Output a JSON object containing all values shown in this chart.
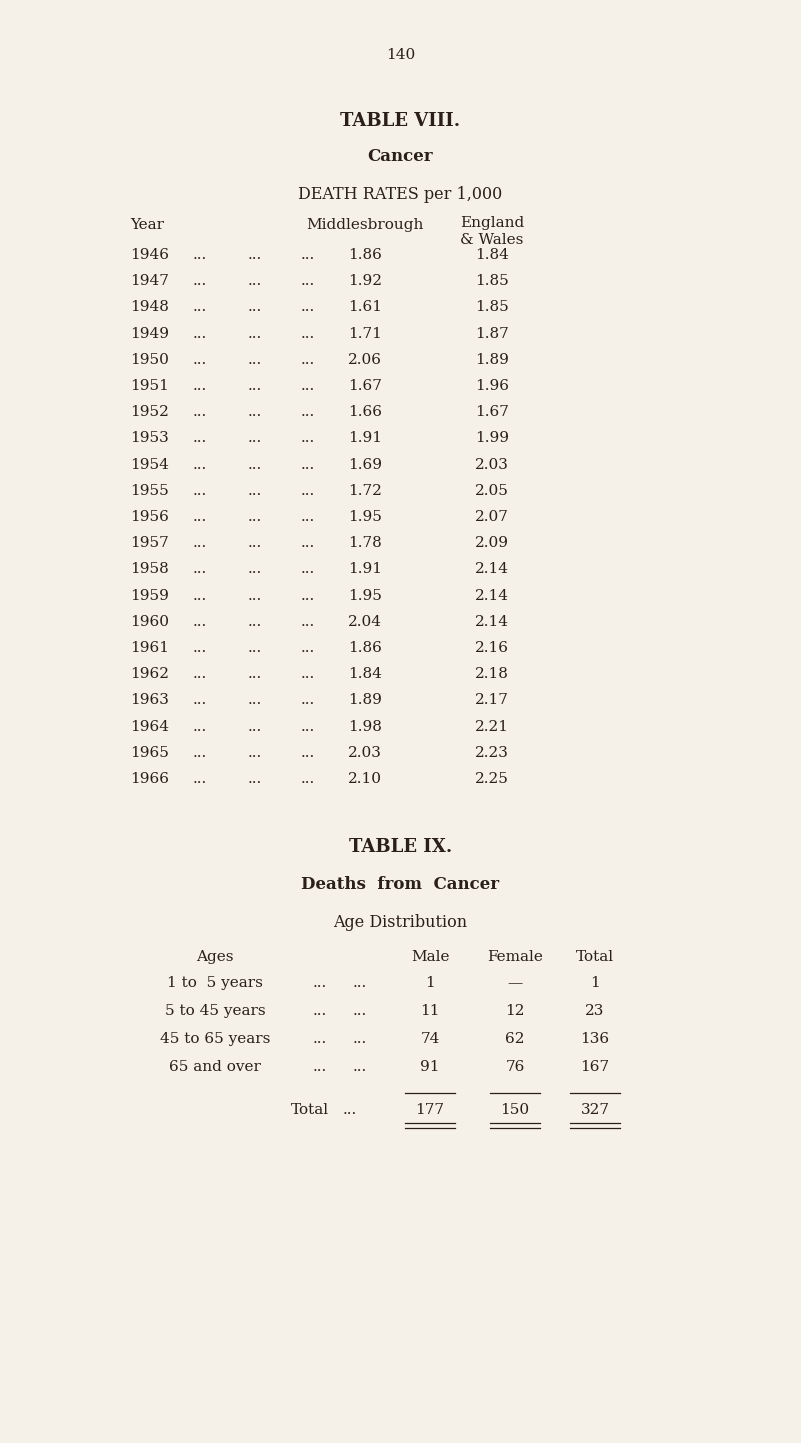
{
  "page_number": "140",
  "bg_color": "#f5f0e8",
  "text_color": "#2a2018",
  "table8_title": "TABLE VIII.",
  "table8_subtitle": "Cancer",
  "table8_header": "DEATH RATES per 1,000",
  "table8_col1_header": "Year",
  "table8_col2_header": "Middlesbrough",
  "table8_col3_header_line1": "England",
  "table8_col3_header_line2": "& Wales",
  "table8_data": [
    [
      "1946",
      "1.86",
      "1.84"
    ],
    [
      "1947",
      "1.92",
      "1.85"
    ],
    [
      "1948",
      "1.61",
      "1.85"
    ],
    [
      "1949",
      "1.71",
      "1.87"
    ],
    [
      "1950",
      "2.06",
      "1.89"
    ],
    [
      "1951",
      "1.67",
      "1.96"
    ],
    [
      "1952",
      "1.66",
      "1.67"
    ],
    [
      "1953",
      "1.91",
      "1.99"
    ],
    [
      "1954",
      "1.69",
      "2.03"
    ],
    [
      "1955",
      "1.72",
      "2.05"
    ],
    [
      "1956",
      "1.95",
      "2.07"
    ],
    [
      "1957",
      "1.78",
      "2.09"
    ],
    [
      "1958",
      "1.91",
      "2.14"
    ],
    [
      "1959",
      "1.95",
      "2.14"
    ],
    [
      "1960",
      "2.04",
      "2.14"
    ],
    [
      "1961",
      "1.86",
      "2.16"
    ],
    [
      "1962",
      "1.84",
      "2.18"
    ],
    [
      "1963",
      "1.89",
      "2.17"
    ],
    [
      "1964",
      "1.98",
      "2.21"
    ],
    [
      "1965",
      "2.03",
      "2.23"
    ],
    [
      "1966",
      "2.10",
      "2.25"
    ]
  ],
  "table9_title": "TABLE IX.",
  "table9_subtitle": "Deaths  from  Cancer",
  "table9_subheader": "Age Distribution",
  "table9_col_ages": "Ages",
  "table9_col_male": "Male",
  "table9_col_female": "Female",
  "table9_col_total": "Total",
  "table9_data": [
    [
      "1 to  5 years",
      "1",
      "—",
      "1"
    ],
    [
      "5 to 45 years",
      "11",
      "12",
      "23"
    ],
    [
      "45 to 65 years",
      "74",
      "62",
      "136"
    ],
    [
      "65 and over",
      "91",
      "76",
      "167"
    ]
  ],
  "table9_total_row": [
    "Total",
    "177",
    "150",
    "327"
  ]
}
